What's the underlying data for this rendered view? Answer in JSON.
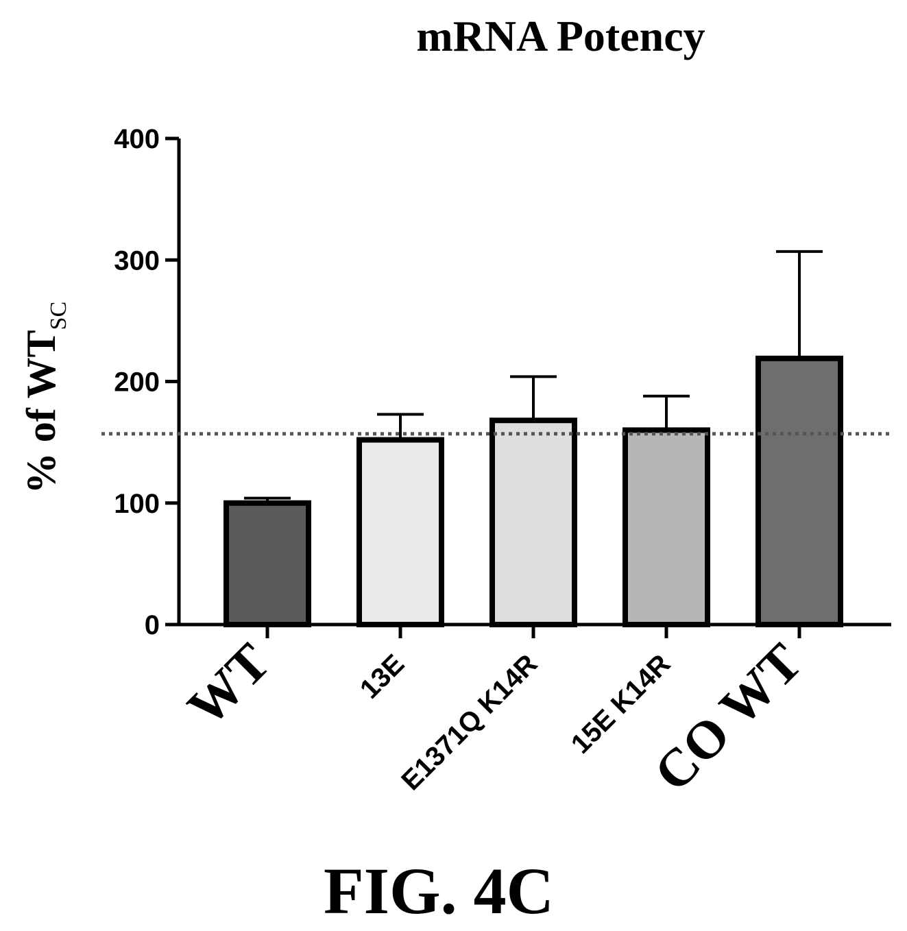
{
  "title": "mRNA Potency",
  "figure_label": "FIG. 4C",
  "colors": {
    "axis": "#000000",
    "bar_outline": "#000000",
    "reference_line": "#555555",
    "bar_fills": [
      "#5a5a5a",
      "#ebebeb",
      "#dedede",
      "#b6b6b6",
      "#6e6e6e"
    ]
  },
  "chart_data": {
    "type": "bar",
    "title": "mRNA Potency",
    "ylabel": "% of WT",
    "ylabel_subscript": "SC",
    "xlabel": "",
    "categories": [
      "WT",
      "13E",
      "E1371Q K14R",
      "15E K14R",
      "CO WT"
    ],
    "values": [
      100,
      152,
      168,
      160,
      219
    ],
    "error_upper": [
      104,
      173,
      204,
      188,
      307
    ],
    "ylim": [
      0,
      400
    ],
    "yticks": [
      0,
      100,
      200,
      300,
      400
    ],
    "reference_line": 157,
    "grid": false,
    "legend": "none"
  }
}
